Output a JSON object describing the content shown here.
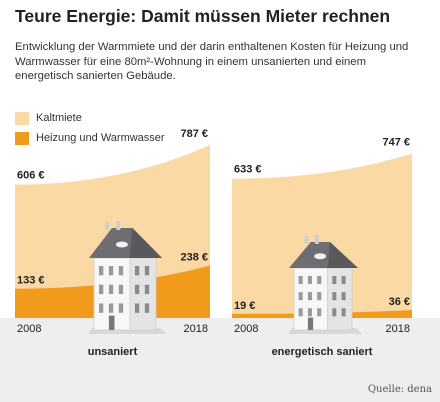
{
  "title": "Teure Energie: Damit müssen Mieter rechnen",
  "subtitle": "Entwicklung der Warmmiete und der darin enthaltenen Kosten für Heizung und Warmwasser für eine 80m²-Wohnung in einem unsanierten und einem energetisch sanierten Gebäude.",
  "source": "Quelle: dena",
  "colors": {
    "kaltmiete": "#fbd9a4",
    "heizung": "#f29a1b",
    "ground": "#eeeeee"
  },
  "legend": [
    {
      "label": "Kaltmiete",
      "color": "#fbd9a4"
    },
    {
      "label": "Heizung und Warmwasser",
      "color": "#f29a1b"
    }
  ],
  "chart_data": [
    {
      "type": "area",
      "title": "unsaniert",
      "x": [
        "2008",
        "2018"
      ],
      "series": [
        {
          "name": "Kaltmiete",
          "values": [
            606,
            787
          ],
          "labels": [
            "606 €",
            "787 €"
          ]
        },
        {
          "name": "Heizung und Warmwasser",
          "values": [
            133,
            238
          ],
          "labels": [
            "133 €",
            "238 €"
          ]
        }
      ]
    },
    {
      "type": "area",
      "title": "energetisch saniert",
      "x": [
        "2008",
        "2018"
      ],
      "series": [
        {
          "name": "Kaltmiete",
          "values": [
            633,
            747
          ],
          "labels": [
            "633 €",
            "747 €"
          ]
        },
        {
          "name": "Heizung und Warmwasser",
          "values": [
            19,
            36
          ],
          "labels": [
            "19 €",
            "36 €"
          ]
        }
      ]
    }
  ]
}
